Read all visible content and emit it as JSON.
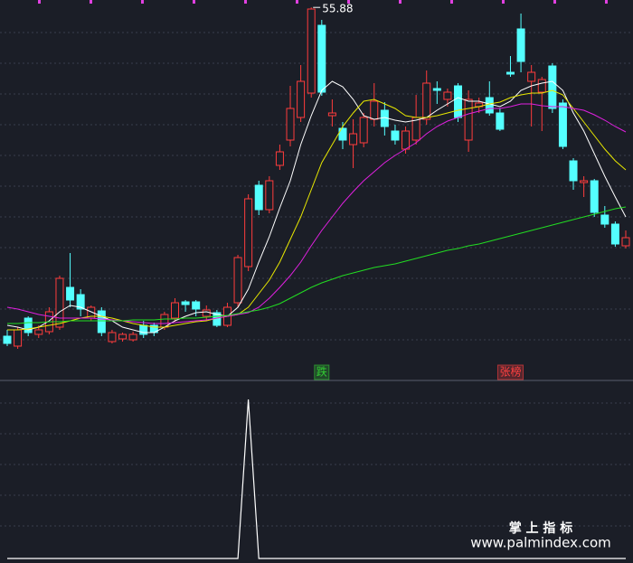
{
  "chart_data": [
    {
      "type": "candlestick",
      "ylim": [
        16.7,
        56.7
      ],
      "up_color": "#ff3c3c",
      "down_color": "#54ffff",
      "open": [
        19.5,
        18.4,
        21.5,
        19.7,
        20.0,
        20.5,
        24.9,
        24.1,
        21.5,
        22.3,
        18.9,
        19.2,
        19.1,
        20.7,
        20.7,
        20.5,
        21.5,
        23.3,
        23.3,
        21.7,
        22.1,
        20.7,
        23.2,
        27.2,
        36.2,
        33.5,
        38.4,
        41.2,
        43.7,
        46.4,
        53.9,
        43.9,
        42.5,
        40.7,
        40.9,
        43.5,
        44.5,
        42.2,
        40.2,
        41.2,
        43.5,
        46.9,
        45.7,
        47.2,
        41.2,
        44.9,
        45.9,
        44.2,
        48.7,
        53.5,
        47.7,
        46.5,
        49.4,
        45.3,
        38.9,
        36.5,
        36.7,
        32.9,
        31.9,
        29.5
      ],
      "high": [
        20.2,
        20.5,
        21.7,
        20.7,
        22.7,
        26.2,
        28.7,
        24.7,
        22.9,
        22.7,
        20.2,
        19.9,
        20.0,
        21.2,
        21.0,
        22.2,
        23.7,
        23.5,
        23.5,
        22.9,
        22.4,
        23.2,
        28.5,
        35.2,
        36.7,
        37.2,
        40.7,
        47.2,
        49.5,
        55.88,
        54.5,
        45.7,
        43.2,
        43.5,
        44.2,
        47.5,
        45.4,
        42.9,
        42.7,
        46.2,
        48.9,
        47.7,
        46.9,
        47.5,
        46.7,
        45.9,
        47.7,
        44.7,
        50.5,
        55.2,
        49.5,
        48.2,
        49.7,
        45.7,
        39.2,
        37.2,
        36.9,
        33.9,
        32.2,
        31.2
      ],
      "low": [
        18.4,
        18.1,
        19.5,
        19.3,
        19.7,
        20.2,
        22.7,
        21.7,
        21.2,
        19.5,
        18.7,
        18.9,
        18.9,
        19.3,
        19.5,
        20.2,
        21.1,
        22.2,
        21.7,
        21.2,
        20.5,
        20.5,
        22.7,
        26.7,
        32.9,
        33.1,
        37.9,
        40.5,
        43.2,
        45.9,
        46.1,
        42.7,
        40.2,
        38.1,
        40.4,
        42.7,
        41.7,
        40.7,
        39.7,
        40.7,
        42.9,
        45.2,
        44.9,
        43.2,
        39.9,
        44.2,
        43.9,
        42.2,
        48.2,
        48.7,
        42.7,
        42.2,
        44.2,
        40.2,
        35.7,
        34.9,
        32.7,
        31.5,
        29.4,
        29.2
      ],
      "close": [
        18.7,
        20.2,
        19.9,
        20.2,
        22.2,
        25.9,
        23.5,
        22.5,
        22.7,
        19.9,
        19.9,
        19.7,
        19.7,
        19.7,
        19.9,
        21.9,
        23.2,
        23.0,
        22.5,
        22.4,
        20.7,
        22.7,
        28.2,
        34.7,
        33.5,
        36.7,
        39.9,
        44.7,
        47.7,
        55.7,
        46.5,
        44.2,
        41.2,
        41.9,
        43.7,
        45.5,
        42.7,
        41.2,
        42.2,
        43.7,
        47.5,
        46.7,
        46.5,
        43.7,
        45.7,
        45.3,
        44.2,
        42.4,
        48.5,
        49.9,
        48.7,
        47.9,
        44.7,
        40.5,
        36.7,
        36.7,
        33.2,
        31.9,
        29.7,
        30.4
      ],
      "series": [
        {
          "color": "#ffffff",
          "values": [
            20.7,
            20.5,
            20.2,
            20.5,
            21.2,
            22.2,
            22.9,
            22.7,
            22.2,
            21.7,
            21.2,
            20.5,
            20.2,
            19.9,
            19.9,
            20.5,
            21.2,
            21.7,
            22.1,
            22.2,
            21.9,
            21.7,
            22.7,
            24.7,
            27.7,
            30.5,
            33.7,
            36.7,
            40.7,
            43.9,
            46.7,
            47.7,
            47.1,
            45.7,
            43.9,
            43.5,
            43.7,
            43.4,
            43.2,
            43.4,
            43.7,
            44.5,
            45.2,
            45.9,
            45.5,
            45.5,
            45.2,
            44.9,
            45.5,
            46.7,
            47.2,
            47.5,
            47.7,
            46.7,
            44.2,
            42.2,
            39.7,
            37.2,
            34.9,
            32.7
          ]
        },
        {
          "color": "#e8e800",
          "values": [
            20.2,
            20.2,
            20.3,
            20.5,
            20.7,
            20.9,
            21.2,
            21.5,
            21.7,
            21.7,
            21.5,
            21.2,
            20.9,
            20.7,
            20.5,
            20.5,
            20.7,
            20.9,
            21.1,
            21.2,
            21.5,
            21.7,
            21.9,
            22.7,
            24.2,
            25.7,
            27.7,
            30.2,
            32.7,
            35.7,
            38.7,
            40.7,
            42.7,
            44.2,
            45.5,
            45.7,
            45.2,
            44.7,
            43.9,
            43.7,
            43.7,
            43.9,
            44.2,
            44.5,
            44.7,
            44.9,
            45.2,
            45.4,
            45.9,
            46.2,
            46.4,
            46.4,
            46.7,
            46.2,
            44.7,
            43.2,
            41.7,
            40.2,
            38.9,
            37.9
          ]
        },
        {
          "color": "#e020e0",
          "values": [
            22.7,
            22.5,
            22.2,
            21.9,
            21.7,
            21.5,
            21.5,
            21.5,
            21.5,
            21.4,
            21.3,
            21.2,
            21.1,
            21.0,
            20.9,
            20.9,
            21.0,
            21.1,
            21.2,
            21.3,
            21.5,
            21.7,
            21.9,
            22.1,
            22.7,
            23.7,
            24.9,
            26.2,
            27.7,
            29.5,
            31.2,
            32.7,
            34.2,
            35.5,
            36.7,
            37.7,
            38.7,
            39.5,
            40.2,
            40.9,
            41.9,
            42.7,
            43.3,
            43.7,
            44.1,
            44.4,
            44.7,
            44.7,
            44.9,
            45.2,
            45.2,
            45.0,
            44.9,
            44.9,
            44.7,
            44.5,
            44.0,
            43.4,
            42.7,
            42.1
          ]
        },
        {
          "color": "#22dd22",
          "values": [
            20.9,
            20.9,
            21.0,
            21.0,
            21.1,
            21.1,
            21.2,
            21.2,
            21.2,
            21.2,
            21.2,
            21.2,
            21.3,
            21.3,
            21.3,
            21.4,
            21.4,
            21.5,
            21.5,
            21.6,
            21.7,
            21.8,
            22.0,
            22.2,
            22.4,
            22.7,
            23.1,
            23.7,
            24.3,
            24.9,
            25.4,
            25.8,
            26.2,
            26.5,
            26.8,
            27.1,
            27.3,
            27.5,
            27.8,
            28.1,
            28.4,
            28.7,
            29.0,
            29.2,
            29.5,
            29.7,
            30.0,
            30.3,
            30.6,
            30.9,
            31.2,
            31.5,
            31.8,
            32.1,
            32.4,
            32.7,
            33.0,
            33.3,
            33.6,
            33.8
          ]
        }
      ],
      "signals": [
        null,
        null,
        null,
        null,
        null,
        null,
        null,
        null,
        null,
        null,
        null,
        null,
        null,
        null,
        null,
        null,
        null,
        null,
        null,
        null,
        null,
        null,
        null,
        null,
        null,
        null,
        null,
        null,
        null,
        null,
        {
          "text": "跌",
          "color": "#33cc33"
        },
        null,
        null,
        null,
        null,
        null,
        null,
        null,
        null,
        null,
        null,
        null,
        null,
        null,
        null,
        null,
        null,
        null,
        {
          "text": "张榜",
          "color": "#ff4040"
        },
        null,
        null,
        null,
        null,
        null,
        null,
        null,
        null,
        null,
        null,
        null,
        null
      ]
    },
    {
      "type": "line",
      "color": "#ffffff",
      "ylim": [
        0,
        1
      ],
      "values": [
        0,
        0,
        0,
        0,
        0,
        0,
        0,
        0,
        0,
        0,
        0,
        0,
        0,
        0,
        0,
        0,
        0,
        0,
        0,
        0,
        0,
        0,
        0,
        1,
        0,
        0,
        0,
        0,
        0,
        0,
        0,
        0,
        0,
        0,
        0,
        0,
        0,
        0,
        0,
        0,
        0,
        0,
        0,
        0,
        0,
        0,
        0,
        0,
        0,
        0,
        0,
        0,
        0,
        0,
        0,
        0,
        0,
        0,
        0,
        0
      ]
    }
  ],
  "watermark": {
    "title": "掌 上 指 标",
    "url": "www.palmindex.com"
  }
}
